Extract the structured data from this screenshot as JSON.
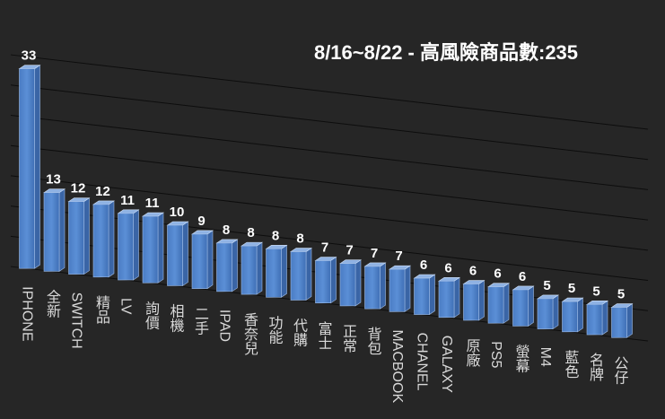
{
  "chart_data": {
    "type": "bar",
    "title": "8/16~8/22 - 高風險商品數:235",
    "categories": [
      "IPHONE",
      "全新",
      "SWITCH",
      "精品",
      "LV",
      "詢價",
      "相機",
      "二手",
      "IPAD",
      "香奈兒",
      "功能",
      "代購",
      "富士",
      "正常",
      "背包",
      "MACBOOK",
      "CHANEL",
      "GALAXY",
      "原廠",
      "PS5",
      "螢幕",
      "M4",
      "藍色",
      "名牌",
      "公仔"
    ],
    "values": [
      33,
      13,
      12,
      12,
      11,
      11,
      10,
      9,
      8,
      8,
      8,
      8,
      7,
      7,
      7,
      7,
      6,
      6,
      6,
      6,
      6,
      5,
      5,
      5,
      5
    ],
    "color": "#5b8fd6",
    "ylim": [
      0,
      35
    ],
    "yticks": [
      0,
      5,
      10,
      15,
      20,
      25,
      30,
      35
    ],
    "grid": true
  }
}
